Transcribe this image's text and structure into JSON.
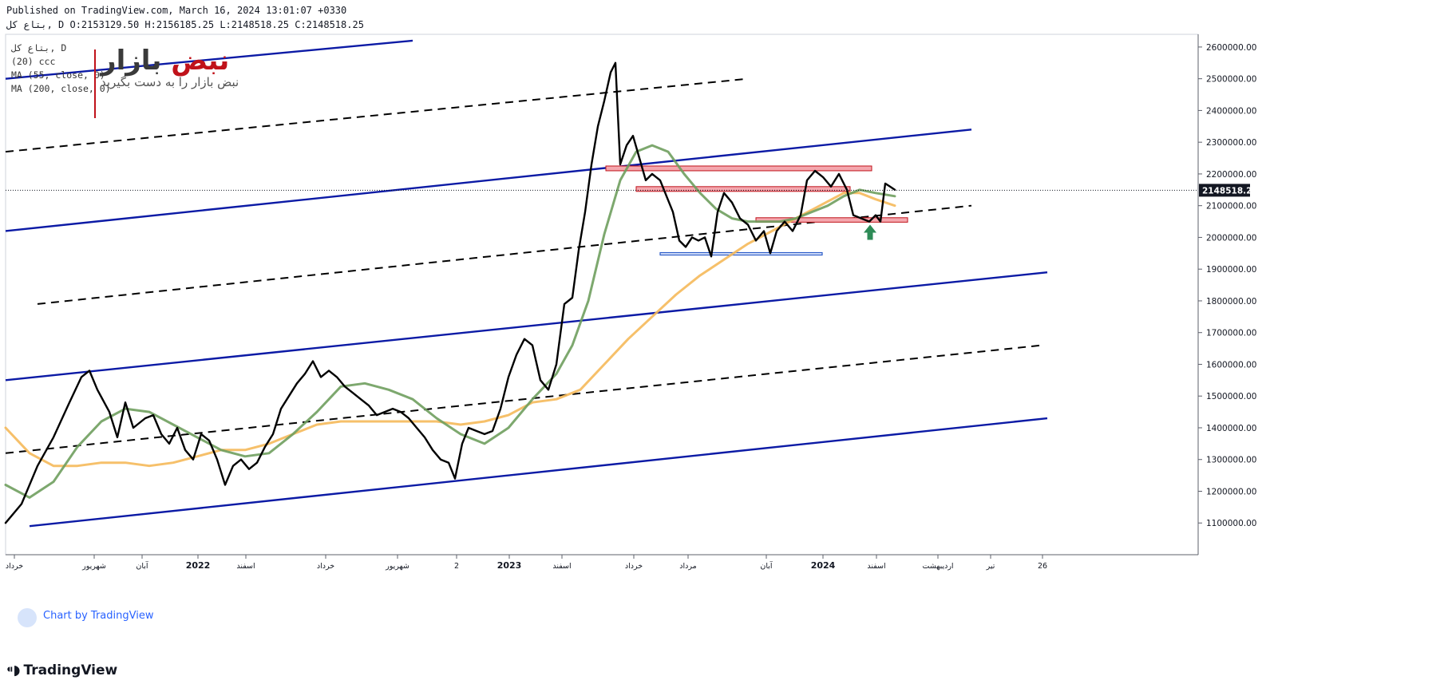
{
  "header": {
    "published": "Published on TradingView.com, March 16, 2024 13:01:07 +0330",
    "ohlc": "ﺑﺘﺎﻉ ﻛﻞ, D O:2153129.50 H:2156185.25 L:2148518.25 C:2148518.25"
  },
  "legend": {
    "line1": "ﺑﺘﺎﻉ ﻛﻞ, D",
    "line2": "(20) ccc",
    "line3": "MA (55, close, 0)",
    "line4": "MA (200, close, 0)"
  },
  "watermark": {
    "title_a": "نبض",
    "title_b": "بازار",
    "subtitle": "نبض بازار را به دست بگیرید"
  },
  "chart_badge": "Chart by TradingView",
  "brand": "TradingView",
  "colors": {
    "price": "#000000",
    "ma55": "#6f9e5e",
    "ma200": "#f5b95a",
    "channel": "#0b1aa5",
    "midline": "#000000",
    "resistance_fill": "#f4a7ae",
    "resistance_stroke": "#c0121a",
    "support_stroke": "#2b5cc8",
    "arrow": "#2e8b57"
  },
  "chart_data": {
    "type": "line",
    "title": "",
    "price_axis": {
      "ticks": [
        "1100000.00",
        "1200000.00",
        "1300000.00",
        "1400000.00",
        "1500000.00",
        "1600000.00",
        "1700000.00",
        "1800000.00",
        "1900000.00",
        "2000000.00",
        "2100000.00",
        "2200000.00",
        "2300000.00",
        "2400000.00",
        "2500000.00",
        "2600000.00"
      ],
      "range": [
        1000000,
        2640000
      ],
      "last_price": "2148518.25"
    },
    "time_axis": {
      "labels": [
        "خرداد",
        "شهریور",
        "آبان",
        "2022",
        "اسفند",
        "خرداد",
        "شهریور",
        "2",
        "2023",
        "اسفند",
        "خرداد",
        "مرداد",
        "آبان",
        "2024",
        "اسفند",
        "اردیبهشت",
        "تیر",
        "26"
      ]
    },
    "series": [
      {
        "type": "price",
        "points": [
          [
            0,
            1100000
          ],
          [
            20,
            1160000
          ],
          [
            40,
            1280000
          ],
          [
            60,
            1370000
          ],
          [
            80,
            1480000
          ],
          [
            95,
            1560000
          ],
          [
            105,
            1580000
          ],
          [
            115,
            1520000
          ],
          [
            130,
            1450000
          ],
          [
            140,
            1370000
          ],
          [
            150,
            1480000
          ],
          [
            160,
            1400000
          ],
          [
            175,
            1430000
          ],
          [
            185,
            1440000
          ],
          [
            195,
            1380000
          ],
          [
            205,
            1350000
          ],
          [
            215,
            1400000
          ],
          [
            225,
            1330000
          ],
          [
            235,
            1300000
          ],
          [
            245,
            1380000
          ],
          [
            255,
            1360000
          ],
          [
            265,
            1300000
          ],
          [
            275,
            1220000
          ],
          [
            285,
            1280000
          ],
          [
            295,
            1300000
          ],
          [
            305,
            1270000
          ],
          [
            315,
            1290000
          ],
          [
            325,
            1340000
          ],
          [
            335,
            1380000
          ],
          [
            345,
            1460000
          ],
          [
            355,
            1500000
          ],
          [
            365,
            1540000
          ],
          [
            375,
            1570000
          ],
          [
            385,
            1610000
          ],
          [
            395,
            1560000
          ],
          [
            405,
            1580000
          ],
          [
            415,
            1560000
          ],
          [
            425,
            1530000
          ],
          [
            435,
            1510000
          ],
          [
            445,
            1490000
          ],
          [
            455,
            1470000
          ],
          [
            465,
            1440000
          ],
          [
            475,
            1450000
          ],
          [
            485,
            1460000
          ],
          [
            495,
            1450000
          ],
          [
            505,
            1430000
          ],
          [
            515,
            1400000
          ],
          [
            525,
            1370000
          ],
          [
            535,
            1330000
          ],
          [
            545,
            1300000
          ],
          [
            555,
            1290000
          ],
          [
            563,
            1240000
          ],
          [
            572,
            1350000
          ],
          [
            580,
            1400000
          ],
          [
            590,
            1390000
          ],
          [
            600,
            1380000
          ],
          [
            610,
            1390000
          ],
          [
            620,
            1460000
          ],
          [
            630,
            1560000
          ],
          [
            640,
            1630000
          ],
          [
            650,
            1680000
          ],
          [
            660,
            1660000
          ],
          [
            670,
            1550000
          ],
          [
            680,
            1520000
          ],
          [
            690,
            1600000
          ],
          [
            700,
            1790000
          ],
          [
            710,
            1810000
          ],
          [
            718,
            1960000
          ],
          [
            726,
            2080000
          ],
          [
            734,
            2230000
          ],
          [
            742,
            2350000
          ],
          [
            750,
            2430000
          ],
          [
            758,
            2520000
          ],
          [
            764,
            2550000
          ],
          [
            770,
            2230000
          ],
          [
            778,
            2290000
          ],
          [
            786,
            2320000
          ],
          [
            794,
            2250000
          ],
          [
            802,
            2180000
          ],
          [
            810,
            2200000
          ],
          [
            820,
            2180000
          ],
          [
            828,
            2130000
          ],
          [
            836,
            2080000
          ],
          [
            844,
            1990000
          ],
          [
            852,
            1970000
          ],
          [
            860,
            2000000
          ],
          [
            868,
            1990000
          ],
          [
            876,
            2000000
          ],
          [
            884,
            1940000
          ],
          [
            892,
            2080000
          ],
          [
            900,
            2140000
          ],
          [
            910,
            2110000
          ],
          [
            920,
            2060000
          ],
          [
            930,
            2040000
          ],
          [
            940,
            1990000
          ],
          [
            950,
            2020000
          ],
          [
            958,
            1950000
          ],
          [
            966,
            2020000
          ],
          [
            976,
            2050000
          ],
          [
            986,
            2020000
          ],
          [
            996,
            2070000
          ],
          [
            1004,
            2180000
          ],
          [
            1014,
            2210000
          ],
          [
            1024,
            2190000
          ],
          [
            1034,
            2160000
          ],
          [
            1044,
            2200000
          ],
          [
            1054,
            2150000
          ],
          [
            1062,
            2070000
          ],
          [
            1072,
            2060000
          ],
          [
            1082,
            2050000
          ],
          [
            1090,
            2070000
          ],
          [
            1096,
            2050000
          ],
          [
            1102,
            2170000
          ],
          [
            1108,
            2160000
          ],
          [
            1114,
            2150000
          ]
        ]
      },
      {
        "name": "MA (55, close, 0)",
        "points": [
          [
            0,
            1220000
          ],
          [
            30,
            1180000
          ],
          [
            60,
            1230000
          ],
          [
            90,
            1340000
          ],
          [
            120,
            1420000
          ],
          [
            150,
            1460000
          ],
          [
            180,
            1450000
          ],
          [
            210,
            1410000
          ],
          [
            240,
            1370000
          ],
          [
            270,
            1330000
          ],
          [
            300,
            1310000
          ],
          [
            330,
            1320000
          ],
          [
            360,
            1380000
          ],
          [
            390,
            1450000
          ],
          [
            420,
            1530000
          ],
          [
            450,
            1540000
          ],
          [
            480,
            1520000
          ],
          [
            510,
            1490000
          ],
          [
            540,
            1430000
          ],
          [
            570,
            1380000
          ],
          [
            600,
            1350000
          ],
          [
            630,
            1400000
          ],
          [
            660,
            1490000
          ],
          [
            690,
            1570000
          ],
          [
            710,
            1660000
          ],
          [
            730,
            1800000
          ],
          [
            750,
            2010000
          ],
          [
            770,
            2180000
          ],
          [
            790,
            2270000
          ],
          [
            810,
            2290000
          ],
          [
            830,
            2270000
          ],
          [
            850,
            2200000
          ],
          [
            870,
            2140000
          ],
          [
            890,
            2090000
          ],
          [
            910,
            2060000
          ],
          [
            930,
            2050000
          ],
          [
            950,
            2050000
          ],
          [
            970,
            2050000
          ],
          [
            990,
            2060000
          ],
          [
            1010,
            2080000
          ],
          [
            1030,
            2100000
          ],
          [
            1050,
            2130000
          ],
          [
            1070,
            2150000
          ],
          [
            1090,
            2140000
          ],
          [
            1114,
            2130000
          ]
        ]
      },
      {
        "name": "MA (200, close, 0)",
        "points": [
          [
            0,
            1400000
          ],
          [
            30,
            1320000
          ],
          [
            60,
            1280000
          ],
          [
            90,
            1280000
          ],
          [
            120,
            1290000
          ],
          [
            150,
            1290000
          ],
          [
            180,
            1280000
          ],
          [
            210,
            1290000
          ],
          [
            240,
            1310000
          ],
          [
            270,
            1330000
          ],
          [
            300,
            1330000
          ],
          [
            330,
            1350000
          ],
          [
            360,
            1380000
          ],
          [
            390,
            1410000
          ],
          [
            420,
            1420000
          ],
          [
            450,
            1420000
          ],
          [
            480,
            1420000
          ],
          [
            510,
            1420000
          ],
          [
            540,
            1420000
          ],
          [
            570,
            1410000
          ],
          [
            600,
            1420000
          ],
          [
            630,
            1440000
          ],
          [
            660,
            1480000
          ],
          [
            690,
            1490000
          ],
          [
            720,
            1520000
          ],
          [
            750,
            1600000
          ],
          [
            780,
            1680000
          ],
          [
            810,
            1750000
          ],
          [
            840,
            1820000
          ],
          [
            870,
            1880000
          ],
          [
            900,
            1930000
          ],
          [
            930,
            1980000
          ],
          [
            960,
            2020000
          ],
          [
            990,
            2060000
          ],
          [
            1020,
            2100000
          ],
          [
            1050,
            2140000
          ],
          [
            1070,
            2140000
          ],
          [
            1090,
            2120000
          ],
          [
            1114,
            2100000
          ]
        ]
      }
    ],
    "channel_lines": [
      {
        "style": "solid",
        "from": [
          0,
          2500000
        ],
        "to": [
          510,
          2620000
        ]
      },
      {
        "style": "dashed",
        "from": [
          0,
          2270000
        ],
        "to": [
          930,
          2500000
        ]
      },
      {
        "style": "solid",
        "from": [
          0,
          2020000
        ],
        "to": [
          1210,
          2340000
        ]
      },
      {
        "style": "dashed",
        "from": [
          40,
          1790000
        ],
        "to": [
          1210,
          2100000
        ]
      },
      {
        "style": "solid",
        "from": [
          0,
          1550000
        ],
        "to": [
          1305,
          1890000
        ]
      },
      {
        "style": "dashed",
        "from": [
          0,
          1320000
        ],
        "to": [
          1298,
          1660000
        ]
      },
      {
        "style": "solid",
        "from": [
          30,
          1090000
        ],
        "to": [
          1305,
          1430000
        ]
      }
    ],
    "zones": [
      {
        "kind": "resistance",
        "x0": 752,
        "x1": 1085,
        "y0": 2210000,
        "y1": 2225000
      },
      {
        "kind": "resistance",
        "x0": 790,
        "x1": 1058,
        "y0": 2145000,
        "y1": 2160000
      },
      {
        "kind": "resistance",
        "x0": 940,
        "x1": 1130,
        "y0": 2048000,
        "y1": 2062000
      },
      {
        "kind": "support",
        "x0": 820,
        "x1": 1023,
        "y0": 1945000,
        "y1": 1952000
      }
    ],
    "arrow": {
      "x": 1083,
      "price": 2010000
    }
  }
}
